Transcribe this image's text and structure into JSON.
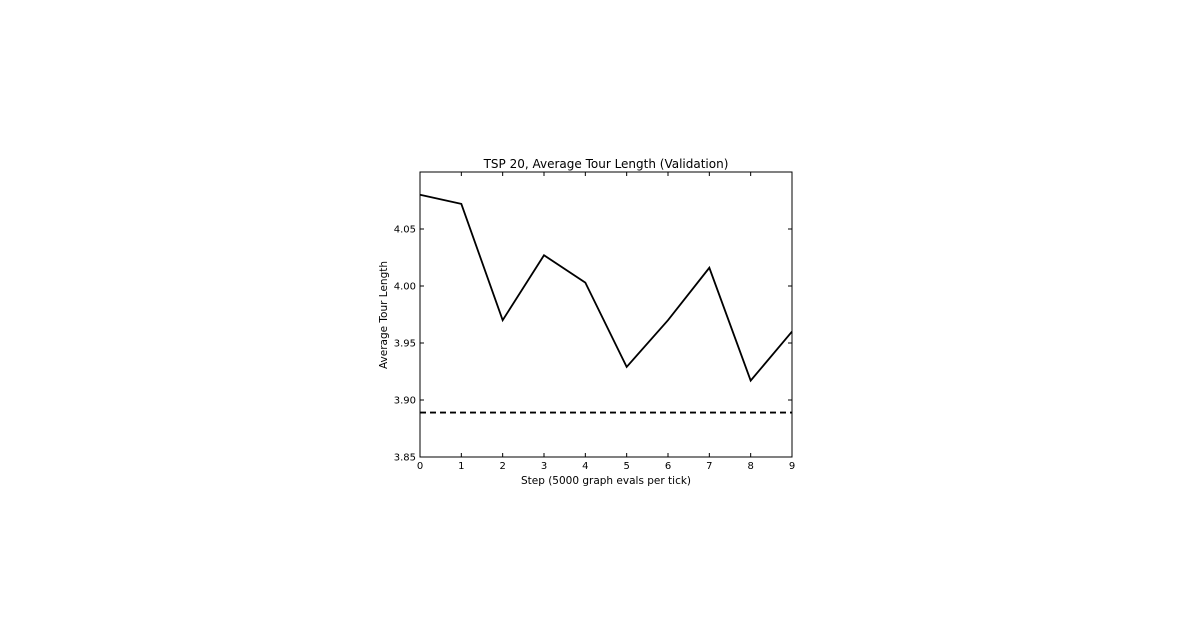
{
  "chart_data": {
    "type": "line",
    "title": "TSP 20, Average Tour Length (Validation)",
    "xlabel": "Step (5000 graph evals per tick)",
    "ylabel": "Average Tour Length",
    "xlim": [
      0,
      9
    ],
    "ylim": [
      3.85,
      4.1
    ],
    "xticks": [
      0,
      1,
      2,
      3,
      4,
      5,
      6,
      7,
      8,
      9
    ],
    "yticks": [
      3.85,
      3.9,
      3.95,
      4.0,
      4.05
    ],
    "ytick_labels": [
      "3.85",
      "3.90",
      "3.95",
      "4.00",
      "4.05"
    ],
    "grid": false,
    "series": [
      {
        "style": "solid",
        "color": "#000000",
        "x": [
          0,
          1,
          2,
          3,
          4,
          5,
          6,
          7,
          8,
          9
        ],
        "y": [
          4.08,
          4.072,
          3.97,
          4.027,
          4.003,
          3.929,
          3.97,
          4.016,
          3.917,
          3.96
        ]
      }
    ],
    "reference_lines": [
      {
        "style": "dashed",
        "color": "#000000",
        "y": 3.889
      }
    ]
  }
}
